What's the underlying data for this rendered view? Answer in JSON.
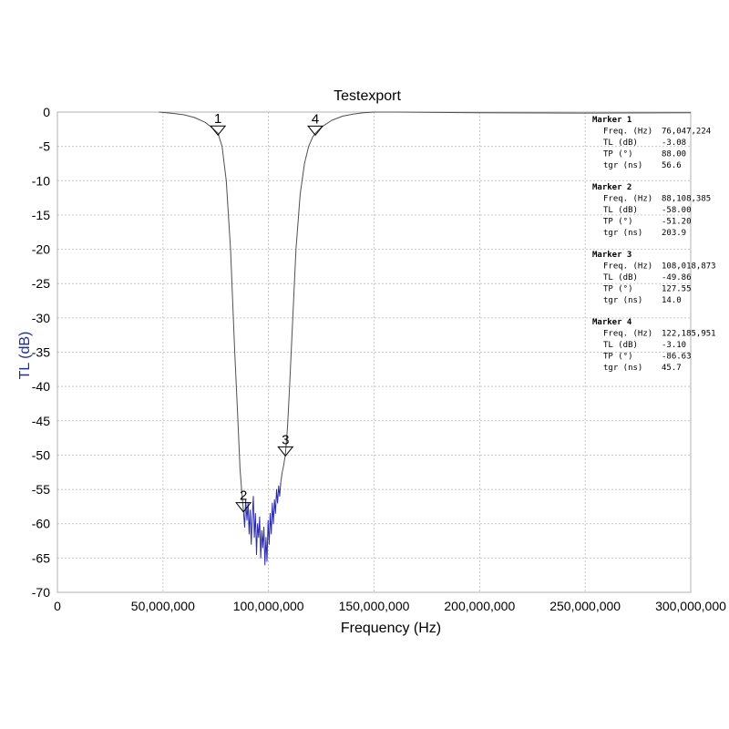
{
  "chart_data": {
    "type": "line",
    "title": "Testexport",
    "xlabel": "Frequency (Hz)",
    "ylabel": "TL (dB)",
    "xlim": [
      0,
      300000000
    ],
    "ylim": [
      -70,
      0
    ],
    "x_ticks": [
      0,
      50000000,
      100000000,
      150000000,
      200000000,
      250000000,
      300000000
    ],
    "x_tick_labels": [
      "0",
      "50,000,000",
      "100,000,000",
      "150,000,000",
      "200,000,000",
      "250,000,000",
      "300,000,000"
    ],
    "y_ticks": [
      0,
      -5,
      -10,
      -15,
      -20,
      -25,
      -30,
      -35,
      -40,
      -45,
      -50,
      -55,
      -60,
      -65,
      -70
    ],
    "y_tick_labels": [
      "0",
      "-5",
      "-10",
      "-15",
      "-20",
      "-25",
      "-30",
      "-35",
      "-40",
      "-45",
      "-50",
      "-55",
      "-60",
      "-65",
      "-70"
    ],
    "grid": true,
    "series": [
      {
        "color": "#505050",
        "x": [
          48000000,
          55000000,
          60000000,
          65000000,
          70000000,
          73000000,
          76047224,
          78000000,
          80000000,
          82000000,
          84000000,
          85500000,
          86500000,
          87500000,
          88108385
        ],
        "y": [
          0,
          -0.2,
          -0.4,
          -0.8,
          -1.5,
          -2.2,
          -3.08,
          -5,
          -10,
          -20,
          -35,
          -45,
          -52,
          -56,
          -58.0
        ]
      },
      {
        "color": "#2b2bb0",
        "x": [
          88108385,
          88700000,
          89200000,
          89800000,
          90300000,
          90800000,
          91300000,
          91800000,
          92300000,
          92800000,
          93300000,
          93800000,
          94300000,
          94800000,
          95300000,
          95800000,
          96300000,
          96800000,
          97300000,
          97800000,
          98300000,
          98800000,
          99300000,
          99800000,
          100300000,
          100800000,
          101300000,
          101800000,
          102300000,
          102800000,
          103300000,
          103800000,
          104300000,
          104800000,
          105300000,
          105800000
        ],
        "y": [
          -58.0,
          -60.5,
          -56.5,
          -59.5,
          -57.0,
          -61.5,
          -58.0,
          -63.0,
          -59.0,
          -56.0,
          -62.0,
          -58.5,
          -64.5,
          -60.0,
          -62.0,
          -59.0,
          -65.0,
          -61.0,
          -63.5,
          -60.5,
          -66.0,
          -62.0,
          -65.5,
          -59.5,
          -63.0,
          -58.5,
          -61.5,
          -57.0,
          -60.0,
          -56.5,
          -58.5,
          -55.0,
          -57.0,
          -54.5,
          -56.0,
          -54.0
        ]
      },
      {
        "color": "#505050",
        "x": [
          105800000,
          106500000,
          107200000,
          108018873,
          109000000,
          110000000,
          111500000,
          113000000,
          115000000,
          117000000,
          119000000,
          121000000,
          122185951,
          125000000,
          130000000,
          135000000,
          140000000,
          145000000,
          150000000,
          160000000,
          200000000,
          250000000,
          300000000
        ],
        "y": [
          -54.0,
          -52.5,
          -51.5,
          -49.86,
          -46,
          -40,
          -30,
          -20,
          -12,
          -7.5,
          -5,
          -3.6,
          -3.1,
          -2.2,
          -1.2,
          -0.6,
          -0.3,
          -0.1,
          0,
          0,
          -0.1,
          -0.15,
          -0.1
        ]
      }
    ],
    "markers": [
      {
        "id": "1",
        "freq": 76047224,
        "tl": -3.08
      },
      {
        "id": "2",
        "freq": 88108385,
        "tl": -58.0
      },
      {
        "id": "3",
        "freq": 108018873,
        "tl": -49.86
      },
      {
        "id": "4",
        "freq": 122185951,
        "tl": -3.1
      }
    ],
    "marker_table": [
      {
        "title": "Marker 1",
        "rows": [
          [
            "Freq. (Hz)",
            "76,047,224"
          ],
          [
            "TL (dB)",
            "-3.08"
          ],
          [
            "TP (°)",
            "88.00"
          ],
          [
            "tgr (ns)",
            "56.6"
          ]
        ]
      },
      {
        "title": "Marker 2",
        "rows": [
          [
            "Freq. (Hz)",
            "88,108,385"
          ],
          [
            "TL (dB)",
            "-58.00"
          ],
          [
            "TP (°)",
            "-51.20"
          ],
          [
            "tgr (ns)",
            "203.9"
          ]
        ]
      },
      {
        "title": "Marker 3",
        "rows": [
          [
            "Freq. (Hz)",
            "108,018,873"
          ],
          [
            "TL (dB)",
            "-49.86"
          ],
          [
            "TP (°)",
            "127.55"
          ],
          [
            "tgr (ns)",
            "14.0"
          ]
        ]
      },
      {
        "title": "Marker 4",
        "rows": [
          [
            "Freq. (Hz)",
            "122,185,951"
          ],
          [
            "TL (dB)",
            "-3.10"
          ],
          [
            "TP (°)",
            "-86.63"
          ],
          [
            "tgr (ns)",
            "45.7"
          ]
        ]
      }
    ]
  }
}
